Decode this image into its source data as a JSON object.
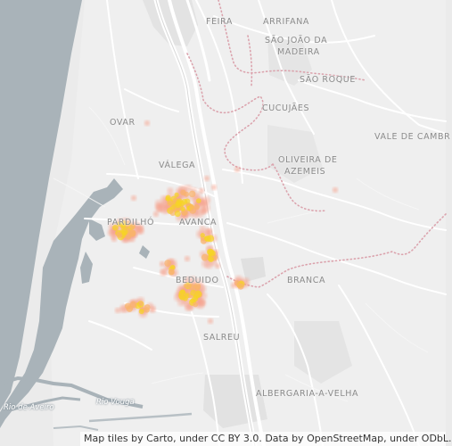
{
  "places": [
    {
      "id": "feira",
      "label": "FEIRA"
    },
    {
      "id": "arrifana",
      "label": "ARRIFANA"
    },
    {
      "id": "sao-joao-da-madeira-1",
      "label": "SÃO JOÃO DA"
    },
    {
      "id": "sao-joao-da-madeira-2",
      "label": "MADEIRA"
    },
    {
      "id": "sao-roque",
      "label": "SÃO ROQUE"
    },
    {
      "id": "ovar",
      "label": "OVAR"
    },
    {
      "id": "cucujaes",
      "label": "CUCUJÃES"
    },
    {
      "id": "vale-de-cambra",
      "label": "VALE DE CAMBR"
    },
    {
      "id": "valega",
      "label": "VÁLEGA"
    },
    {
      "id": "oliveira-1",
      "label": "OLIVEIRA DE"
    },
    {
      "id": "oliveira-2",
      "label": "AZEMEIS"
    },
    {
      "id": "pardilho",
      "label": "PARDILHÓ"
    },
    {
      "id": "avanca",
      "label": "AVANCA"
    },
    {
      "id": "branca",
      "label": "BRANCA"
    },
    {
      "id": "bunheiro",
      "label": "BEDUIDO"
    },
    {
      "id": "salreu",
      "label": "SALREU"
    },
    {
      "id": "albergaria",
      "label": "ALBERGARIA-A-VELHA"
    }
  ],
  "water_labels": [
    {
      "id": "rio-de-aveiro",
      "label": "Rio de Aveiro"
    },
    {
      "id": "rio-vouga",
      "label": "Rio Vouga"
    }
  ],
  "attribution": "Map tiles by Carto, under CC BY 3.0. Data by OpenStreetMap, under ODbL.",
  "colors": {
    "land": "#ebebeb",
    "water": "#a9b3b9",
    "road": "#ffffff",
    "boundary": "#dba3ad",
    "heat_outer": "#f7a08a",
    "heat_mid": "#f9b36b",
    "heat_core": "#f6d423"
  }
}
